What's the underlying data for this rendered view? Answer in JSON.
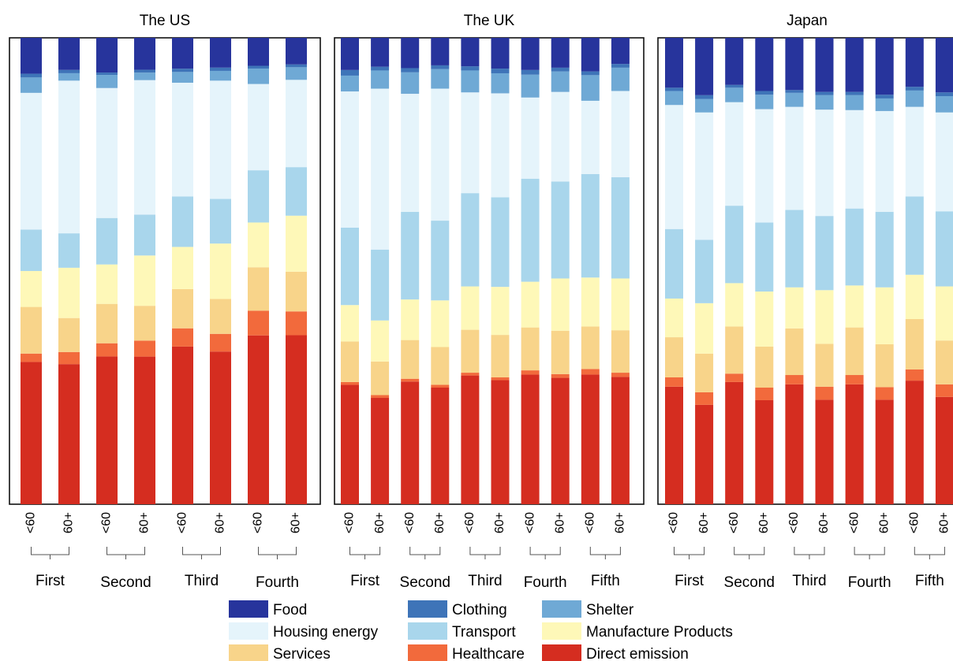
{
  "chart_data": {
    "type": "bar",
    "stacked": true,
    "normalized_percent": true,
    "ylim": [
      0,
      100
    ],
    "grid": false,
    "legend_position": "bottom",
    "series": [
      {
        "name": "Direct emission",
        "color": "#d52d20"
      },
      {
        "name": "Healthcare",
        "color": "#f26a3c"
      },
      {
        "name": "Services",
        "color": "#f8d48a"
      },
      {
        "name": "Manufacture Products",
        "color": "#fef8b8"
      },
      {
        "name": "Transport",
        "color": "#a9d6ec"
      },
      {
        "name": "Housing energy",
        "color": "#e5f4fb"
      },
      {
        "name": "Shelter",
        "color": "#6fa9d5"
      },
      {
        "name": "Clothing",
        "color": "#3e74b8"
      },
      {
        "name": "Food",
        "color": "#27349c"
      }
    ],
    "legend_order": [
      "Food",
      "Clothing",
      "Shelter",
      "Housing energy",
      "Transport",
      "Manufacture Products",
      "Services",
      "Healthcare",
      "Direct emission"
    ],
    "panels": [
      {
        "title": "The US",
        "groups": [
          "First",
          "Second",
          "Third",
          "Fourth"
        ],
        "age_labels": [
          "<60",
          "60+"
        ],
        "bars": [
          [
            30.5,
            1.8,
            10.0,
            7.7,
            8.9,
            29.3,
            3.3,
            0.8,
            7.7
          ],
          [
            30.1,
            2.6,
            7.3,
            10.8,
            7.4,
            32.8,
            1.6,
            0.7,
            6.9
          ],
          [
            31.5,
            2.8,
            8.4,
            8.4,
            9.9,
            27.7,
            2.8,
            0.5,
            7.4
          ],
          [
            31.4,
            3.4,
            7.4,
            10.7,
            8.7,
            28.6,
            1.6,
            0.6,
            6.8
          ],
          [
            33.7,
            3.9,
            8.4,
            9.0,
            10.8,
            24.3,
            2.3,
            0.7,
            6.6
          ],
          [
            32.8,
            3.8,
            7.5,
            11.9,
            9.6,
            25.4,
            2.1,
            0.7,
            6.4
          ],
          [
            36.2,
            5.3,
            9.3,
            9.6,
            11.2,
            18.5,
            3.3,
            0.6,
            6.0
          ],
          [
            36.2,
            5.1,
            8.5,
            12.0,
            10.4,
            18.7,
            2.7,
            0.6,
            5.7
          ]
        ]
      },
      {
        "title": "The UK",
        "groups": [
          "First",
          "Second",
          "Third",
          "Fourth",
          "Fifth"
        ],
        "age_labels": [
          "<60",
          "60+"
        ],
        "bars": [
          [
            25.6,
            0.6,
            8.7,
            7.8,
            16.6,
            29.2,
            3.4,
            1.2,
            6.9
          ],
          [
            22.8,
            0.6,
            7.2,
            8.8,
            15.2,
            34.5,
            3.9,
            0.8,
            6.2
          ],
          [
            26.3,
            0.6,
            8.3,
            8.7,
            18.8,
            25.3,
            4.6,
            0.9,
            6.5
          ],
          [
            25.0,
            0.6,
            8.1,
            10.0,
            17.1,
            28.3,
            4.2,
            0.8,
            5.9
          ],
          [
            27.6,
            0.6,
            9.2,
            9.3,
            20.0,
            21.6,
            4.7,
            0.9,
            6.1
          ],
          [
            26.6,
            0.6,
            9.1,
            10.3,
            19.2,
            22.3,
            4.3,
            1.0,
            6.6
          ],
          [
            27.8,
            0.9,
            9.2,
            9.8,
            22.1,
            17.4,
            4.9,
            1.0,
            6.9
          ],
          [
            27.1,
            0.8,
            9.3,
            11.2,
            20.8,
            19.2,
            4.4,
            0.8,
            6.4
          ],
          [
            27.8,
            1.2,
            9.1,
            10.5,
            22.2,
            15.7,
            5.5,
            0.8,
            7.2
          ],
          [
            27.3,
            0.9,
            9.1,
            11.1,
            21.7,
            18.5,
            5.0,
            0.8,
            5.6
          ]
        ]
      },
      {
        "title": "Japan",
        "groups": [
          "First",
          "Second",
          "Third",
          "Fourth",
          "Fifth"
        ],
        "age_labels": [
          "<60",
          "60+"
        ],
        "bars": [
          [
            25.2,
            2.0,
            8.6,
            8.3,
            14.9,
            26.6,
            3.0,
            0.7,
            10.7
          ],
          [
            21.3,
            2.7,
            8.3,
            10.8,
            13.6,
            27.3,
            2.9,
            0.8,
            12.3
          ],
          [
            26.2,
            1.8,
            10.1,
            9.3,
            16.6,
            22.2,
            3.1,
            0.6,
            10.1
          ],
          [
            22.3,
            2.7,
            8.8,
            11.8,
            14.8,
            24.3,
            3.1,
            0.8,
            11.4
          ],
          [
            25.7,
            2.0,
            10.0,
            8.8,
            16.6,
            22.1,
            3.0,
            0.6,
            11.2
          ],
          [
            22.4,
            2.8,
            9.2,
            11.5,
            15.9,
            22.8,
            3.1,
            0.7,
            11.6
          ],
          [
            25.7,
            2.0,
            10.2,
            9.0,
            16.5,
            21.1,
            3.2,
            0.7,
            11.6
          ],
          [
            22.4,
            2.7,
            9.2,
            12.2,
            16.2,
            21.6,
            2.7,
            0.8,
            12.2
          ],
          [
            26.5,
            2.4,
            10.8,
            9.5,
            16.8,
            19.2,
            3.5,
            0.8,
            10.5
          ],
          [
            23.0,
            2.7,
            9.4,
            11.6,
            16.1,
            21.2,
            3.5,
            0.8,
            11.7
          ]
        ]
      }
    ]
  }
}
